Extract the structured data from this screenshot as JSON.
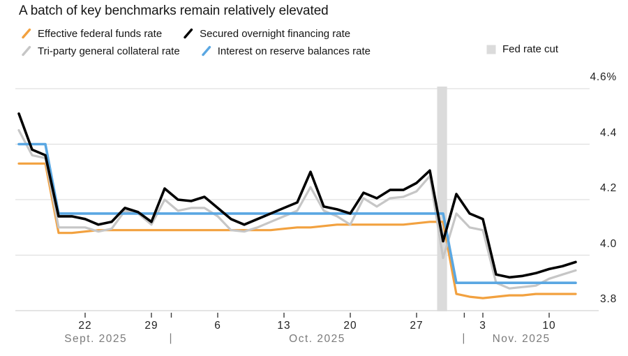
{
  "title": "A batch of key benchmarks remain relatively elevated",
  "legend": {
    "rows": [
      [
        {
          "label": "Effective federal funds rate",
          "marker": "line",
          "color": "#F2A13F"
        },
        {
          "label": "Secured overnight financing rate",
          "marker": "line",
          "color": "#000000"
        }
      ],
      [
        {
          "label": "Tri-party general collateral rate",
          "marker": "line",
          "color": "#C6C6C6"
        },
        {
          "label": "Interest on reserve balances rate",
          "marker": "line",
          "color": "#5AA7E2"
        },
        {
          "label": "Fed rate cut",
          "marker": "square",
          "color": "#DBDBDB"
        }
      ]
    ]
  },
  "chart_data": {
    "type": "line",
    "title": "A batch of key benchmarks remain relatively elevated",
    "y_axis": {
      "unit": "%",
      "min": 3.8,
      "max": 4.6,
      "grid": true,
      "ticks": [
        {
          "label": "4.6%",
          "value": 4.6
        },
        {
          "label": "4.4",
          "value": 4.4
        },
        {
          "label": "4.2",
          "value": 4.2
        },
        {
          "label": "4.0",
          "value": 4.0
        },
        {
          "label": "3.8",
          "value": 3.8
        }
      ]
    },
    "x_axis": {
      "dates": [
        "2025-09-15",
        "2025-09-16",
        "2025-09-17",
        "2025-09-18",
        "2025-09-19",
        "2025-09-22",
        "2025-09-23",
        "2025-09-24",
        "2025-09-25",
        "2025-09-26",
        "2025-09-29",
        "2025-09-30",
        "2025-10-01",
        "2025-10-02",
        "2025-10-03",
        "2025-10-06",
        "2025-10-07",
        "2025-10-08",
        "2025-10-09",
        "2025-10-10",
        "2025-10-13",
        "2025-10-14",
        "2025-10-15",
        "2025-10-16",
        "2025-10-17",
        "2025-10-20",
        "2025-10-21",
        "2025-10-22",
        "2025-10-23",
        "2025-10-24",
        "2025-10-27",
        "2025-10-28",
        "2025-10-29",
        "2025-10-30",
        "2025-10-31",
        "2025-11-03",
        "2025-11-04",
        "2025-11-05",
        "2025-11-06",
        "2025-11-07",
        "2025-11-10",
        "2025-11-11",
        "2025-11-12"
      ],
      "ticks": [
        {
          "label": "22",
          "day": 5
        },
        {
          "label": "29",
          "day": 10
        },
        {
          "label": "6",
          "day": 15
        },
        {
          "label": "13",
          "day": 20
        },
        {
          "label": "20",
          "day": 25
        },
        {
          "label": "27",
          "day": 30
        },
        {
          "label": "3",
          "day": 35
        },
        {
          "label": "10",
          "day": 40
        }
      ],
      "months": [
        {
          "label": "Sept. 2025",
          "center_day": 5.8
        },
        {
          "label": "Oct. 2025",
          "center_day": 22.5
        },
        {
          "label": "Nov. 2025",
          "center_day": 37.9
        }
      ],
      "separator_char": "|",
      "separator_days": [
        11.5,
        33.6
      ]
    },
    "band": {
      "label": "Fed rate cut",
      "date": "2025-10-29",
      "from_day": 31.55,
      "to_day": 32.3,
      "color": "#DBDBDB"
    },
    "series": [
      {
        "name": "Effective federal funds rate",
        "color": "#F2A13F",
        "width": 3.2,
        "values": [
          4.33,
          4.33,
          4.33,
          4.08,
          4.08,
          4.085,
          4.09,
          4.09,
          4.09,
          4.09,
          4.09,
          4.09,
          4.09,
          4.09,
          4.09,
          4.09,
          4.09,
          4.09,
          4.09,
          4.09,
          4.095,
          4.1,
          4.1,
          4.105,
          4.11,
          4.11,
          4.11,
          4.11,
          4.11,
          4.11,
          4.115,
          4.12,
          4.12,
          3.86,
          3.85,
          3.845,
          3.85,
          3.855,
          3.855,
          3.86,
          3.86,
          3.86,
          3.86
        ]
      },
      {
        "name": "Tri-party general collateral rate",
        "color": "#C6C6C6",
        "width": 3.2,
        "values": [
          4.45,
          4.36,
          4.35,
          4.1,
          4.1,
          4.1,
          4.085,
          4.095,
          4.16,
          4.15,
          4.11,
          4.2,
          4.16,
          4.17,
          4.17,
          4.14,
          4.09,
          4.085,
          4.1,
          4.12,
          4.14,
          4.16,
          4.245,
          4.16,
          4.14,
          4.11,
          4.205,
          4.175,
          4.205,
          4.21,
          4.23,
          4.285,
          3.99,
          4.15,
          4.1,
          4.09,
          3.9,
          3.88,
          3.885,
          3.89,
          3.915,
          3.93,
          3.945
        ]
      },
      {
        "name": "Interest on reserve balances rate",
        "color": "#5AA7E2",
        "width": 3.6,
        "values": [
          4.4,
          4.4,
          4.4,
          4.15,
          4.15,
          4.15,
          4.15,
          4.15,
          4.15,
          4.15,
          4.15,
          4.15,
          4.15,
          4.15,
          4.15,
          4.15,
          4.15,
          4.15,
          4.15,
          4.15,
          4.15,
          4.15,
          4.15,
          4.15,
          4.15,
          4.15,
          4.15,
          4.15,
          4.15,
          4.15,
          4.15,
          4.15,
          4.15,
          3.9,
          3.9,
          3.9,
          3.9,
          3.9,
          3.9,
          3.9,
          3.9,
          3.9,
          3.9
        ]
      },
      {
        "name": "Secured overnight financing rate",
        "color": "#000000",
        "width": 3.6,
        "values": [
          4.51,
          4.38,
          4.36,
          4.14,
          4.14,
          4.13,
          4.11,
          4.12,
          4.17,
          4.155,
          4.12,
          4.24,
          4.2,
          4.195,
          4.21,
          4.17,
          4.13,
          4.11,
          4.13,
          4.15,
          4.17,
          4.19,
          4.3,
          4.175,
          4.165,
          4.15,
          4.225,
          4.205,
          4.235,
          4.235,
          4.26,
          4.305,
          4.05,
          4.22,
          4.15,
          4.13,
          3.93,
          3.92,
          3.925,
          3.935,
          3.95,
          3.96,
          3.975
        ]
      }
    ]
  }
}
